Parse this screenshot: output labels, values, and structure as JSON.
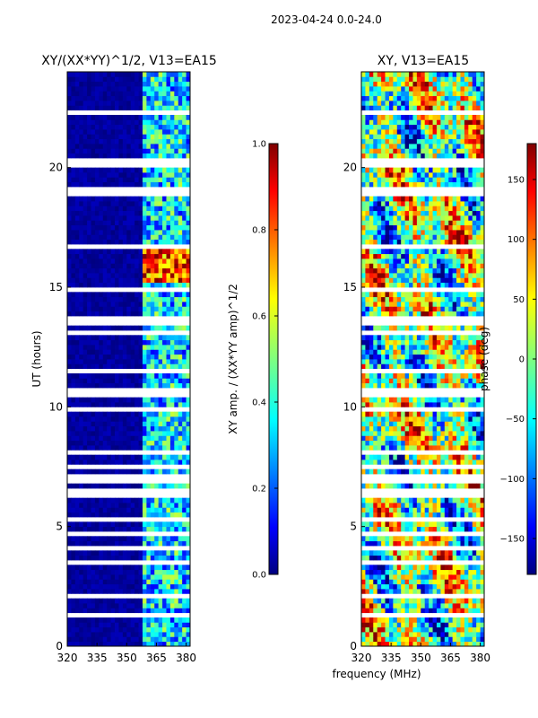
{
  "figure_title": "2023-04-24 0.0-24.0",
  "shared_xlabel": "frequency (MHz)",
  "colors": {
    "jet": [
      "#00007f",
      "#0000ff",
      "#007fff",
      "#00ffff",
      "#7fff7f",
      "#ffff00",
      "#ff7f00",
      "#ff0000",
      "#7f0000"
    ],
    "gap": "#ffffff"
  },
  "chart_data": [
    {
      "type": "heatmap",
      "panel": "left",
      "title": "XY/(XX*YY)^1/2, V13=EA15",
      "xlabel": "",
      "ylabel": "UT (hours)",
      "xlim": [
        320,
        382
      ],
      "ylim": [
        0,
        24
      ],
      "x_ticks": [
        320,
        335,
        350,
        365,
        380
      ],
      "y_ticks": [
        0,
        5,
        10,
        15,
        20
      ],
      "colorbar": {
        "label": "XY amp. / (XX*YY amp)^1/2",
        "range": [
          0.0,
          1.0
        ],
        "ticks": [
          "0.0",
          "0.2",
          "0.4",
          "0.6",
          "0.8",
          "1.0"
        ]
      }
    },
    {
      "type": "heatmap",
      "panel": "right",
      "title": "XY, V13=EA15",
      "xlabel": "frequency (MHz)",
      "ylabel": "",
      "xlim": [
        320,
        382
      ],
      "ylim": [
        0,
        24
      ],
      "x_ticks": [
        320,
        335,
        350,
        365,
        380
      ],
      "y_ticks": [
        0,
        5,
        10,
        15,
        20
      ],
      "colorbar": {
        "label": "phase (deg)",
        "range": [
          -180,
          180
        ],
        "ticks": [
          "150",
          "100",
          "50",
          "0",
          "−50",
          "−100",
          "−150"
        ]
      }
    }
  ]
}
